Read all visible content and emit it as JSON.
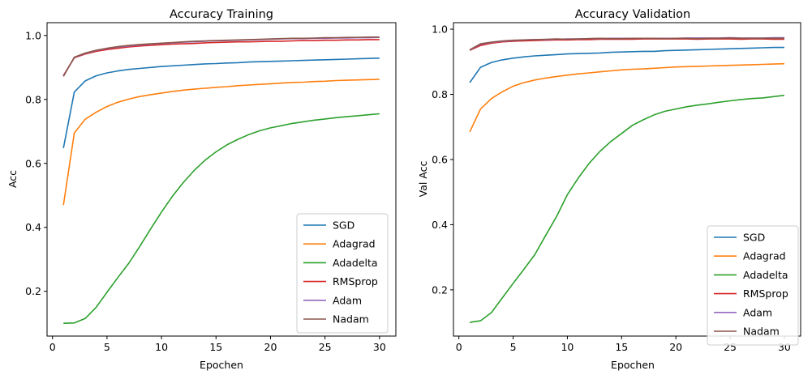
{
  "figure": {
    "colors": {
      "SGD": "#1f77b4",
      "Adagrad": "#ff7f0e",
      "Adadelta": "#2ca02c",
      "RMSprop": "#d62728",
      "Adam": "#9467bd",
      "Nadam": "#8c564b"
    }
  },
  "chart_data": [
    {
      "type": "line",
      "title": "Accuracy Training",
      "xlabel": "Epochen",
      "ylabel": "Acc",
      "xlim": [
        -0.5,
        31.5
      ],
      "ylim": [
        0.06,
        1.04
      ],
      "xticks": [
        0,
        5,
        10,
        15,
        20,
        25,
        30
      ],
      "yticks": [
        0.2,
        0.4,
        0.6,
        0.8,
        1.0
      ],
      "ytick_labels": [
        "0.2",
        "0.4",
        "0.6",
        "0.8",
        "1.0"
      ],
      "grid": false,
      "legend": "lower-right",
      "x": [
        1,
        2,
        3,
        4,
        5,
        6,
        7,
        8,
        9,
        10,
        11,
        12,
        13,
        14,
        15,
        16,
        17,
        18,
        19,
        20,
        21,
        22,
        23,
        24,
        25,
        26,
        27,
        28,
        29,
        30
      ],
      "series": [
        {
          "name": "SGD",
          "values": [
            0.648,
            0.823,
            0.858,
            0.874,
            0.883,
            0.889,
            0.894,
            0.897,
            0.9,
            0.903,
            0.905,
            0.907,
            0.909,
            0.911,
            0.912,
            0.914,
            0.915,
            0.917,
            0.918,
            0.919,
            0.92,
            0.921,
            0.922,
            0.923,
            0.924,
            0.925,
            0.926,
            0.927,
            0.928,
            0.929
          ]
        },
        {
          "name": "Adagrad",
          "values": [
            0.47,
            0.695,
            0.738,
            0.76,
            0.778,
            0.791,
            0.801,
            0.809,
            0.815,
            0.82,
            0.825,
            0.829,
            0.832,
            0.835,
            0.838,
            0.84,
            0.843,
            0.845,
            0.847,
            0.849,
            0.851,
            0.853,
            0.854,
            0.856,
            0.857,
            0.859,
            0.86,
            0.861,
            0.862,
            0.863
          ]
        },
        {
          "name": "Adadelta",
          "values": [
            0.1,
            0.101,
            0.115,
            0.15,
            0.197,
            0.243,
            0.288,
            0.34,
            0.395,
            0.448,
            0.497,
            0.54,
            0.578,
            0.61,
            0.636,
            0.658,
            0.675,
            0.69,
            0.702,
            0.711,
            0.718,
            0.725,
            0.73,
            0.735,
            0.739,
            0.743,
            0.746,
            0.749,
            0.752,
            0.755
          ]
        },
        {
          "name": "RMSprop",
          "values": [
            0.875,
            0.93,
            0.942,
            0.95,
            0.956,
            0.96,
            0.964,
            0.967,
            0.969,
            0.971,
            0.973,
            0.974,
            0.975,
            0.977,
            0.978,
            0.979,
            0.98,
            0.98,
            0.981,
            0.982,
            0.982,
            0.983,
            0.984,
            0.984,
            0.985,
            0.985,
            0.986,
            0.986,
            0.987,
            0.987
          ]
        },
        {
          "name": "Adam",
          "values": [
            0.874,
            0.931,
            0.944,
            0.953,
            0.959,
            0.964,
            0.967,
            0.97,
            0.973,
            0.975,
            0.977,
            0.979,
            0.98,
            0.982,
            0.983,
            0.984,
            0.985,
            0.986,
            0.987,
            0.988,
            0.989,
            0.99,
            0.99,
            0.991,
            0.991,
            0.992,
            0.992,
            0.993,
            0.993,
            0.994
          ]
        },
        {
          "name": "Nadam",
          "values": [
            0.872,
            0.932,
            0.945,
            0.954,
            0.96,
            0.965,
            0.969,
            0.972,
            0.974,
            0.976,
            0.978,
            0.98,
            0.982,
            0.983,
            0.984,
            0.985,
            0.986,
            0.987,
            0.988,
            0.989,
            0.99,
            0.991,
            0.991,
            0.992,
            0.993,
            0.993,
            0.994,
            0.994,
            0.995,
            0.995
          ]
        }
      ]
    },
    {
      "type": "line",
      "title": "Accuracy Validation",
      "xlabel": "Epochen",
      "ylabel": "Val Acc",
      "xlim": [
        -0.5,
        31.5
      ],
      "ylim": [
        0.058,
        1.02
      ],
      "xticks": [
        0,
        5,
        10,
        15,
        20,
        25,
        30
      ],
      "yticks": [
        0.2,
        0.4,
        0.6,
        0.8,
        1.0
      ],
      "ytick_labels": [
        "0.2",
        "0.4",
        "0.6",
        "0.8",
        "1.0"
      ],
      "grid": false,
      "legend": "lower-right",
      "x": [
        1,
        2,
        3,
        4,
        5,
        6,
        7,
        8,
        9,
        10,
        11,
        12,
        13,
        14,
        15,
        16,
        17,
        18,
        19,
        20,
        21,
        22,
        23,
        24,
        25,
        26,
        27,
        28,
        29,
        30
      ],
      "series": [
        {
          "name": "SGD",
          "values": [
            0.836,
            0.883,
            0.898,
            0.906,
            0.911,
            0.915,
            0.918,
            0.92,
            0.922,
            0.924,
            0.925,
            0.926,
            0.927,
            0.929,
            0.93,
            0.931,
            0.932,
            0.932,
            0.934,
            0.935,
            0.936,
            0.937,
            0.938,
            0.939,
            0.94,
            0.941,
            0.942,
            0.943,
            0.944,
            0.944
          ]
        },
        {
          "name": "Adagrad",
          "values": [
            0.685,
            0.755,
            0.787,
            0.808,
            0.825,
            0.836,
            0.844,
            0.85,
            0.855,
            0.859,
            0.863,
            0.866,
            0.869,
            0.872,
            0.875,
            0.877,
            0.878,
            0.88,
            0.882,
            0.884,
            0.885,
            0.886,
            0.887,
            0.888,
            0.889,
            0.89,
            0.891,
            0.892,
            0.893,
            0.894
          ]
        },
        {
          "name": "Adadelta",
          "values": [
            0.1,
            0.105,
            0.13,
            0.175,
            0.22,
            0.263,
            0.308,
            0.367,
            0.425,
            0.492,
            0.543,
            0.588,
            0.625,
            0.655,
            0.68,
            0.705,
            0.722,
            0.737,
            0.748,
            0.755,
            0.762,
            0.767,
            0.771,
            0.776,
            0.78,
            0.784,
            0.787,
            0.789,
            0.793,
            0.797
          ]
        },
        {
          "name": "RMSprop",
          "values": [
            0.935,
            0.95,
            0.957,
            0.961,
            0.963,
            0.964,
            0.965,
            0.966,
            0.967,
            0.967,
            0.968,
            0.968,
            0.969,
            0.969,
            0.969,
            0.969,
            0.97,
            0.97,
            0.97,
            0.97,
            0.97,
            0.969,
            0.97,
            0.97,
            0.97,
            0.969,
            0.97,
            0.97,
            0.969,
            0.969
          ]
        },
        {
          "name": "Adam",
          "values": [
            0.936,
            0.954,
            0.959,
            0.963,
            0.965,
            0.967,
            0.968,
            0.968,
            0.969,
            0.97,
            0.97,
            0.971,
            0.971,
            0.972,
            0.972,
            0.972,
            0.972,
            0.972,
            0.972,
            0.972,
            0.973,
            0.973,
            0.973,
            0.973,
            0.974,
            0.973,
            0.973,
            0.973,
            0.974,
            0.974
          ]
        },
        {
          "name": "Nadam",
          "values": [
            0.937,
            0.955,
            0.96,
            0.964,
            0.966,
            0.967,
            0.968,
            0.969,
            0.97,
            0.969,
            0.97,
            0.971,
            0.972,
            0.971,
            0.971,
            0.972,
            0.972,
            0.972,
            0.971,
            0.972,
            0.972,
            0.971,
            0.972,
            0.972,
            0.973,
            0.972,
            0.972,
            0.972,
            0.972,
            0.972
          ]
        }
      ]
    }
  ]
}
